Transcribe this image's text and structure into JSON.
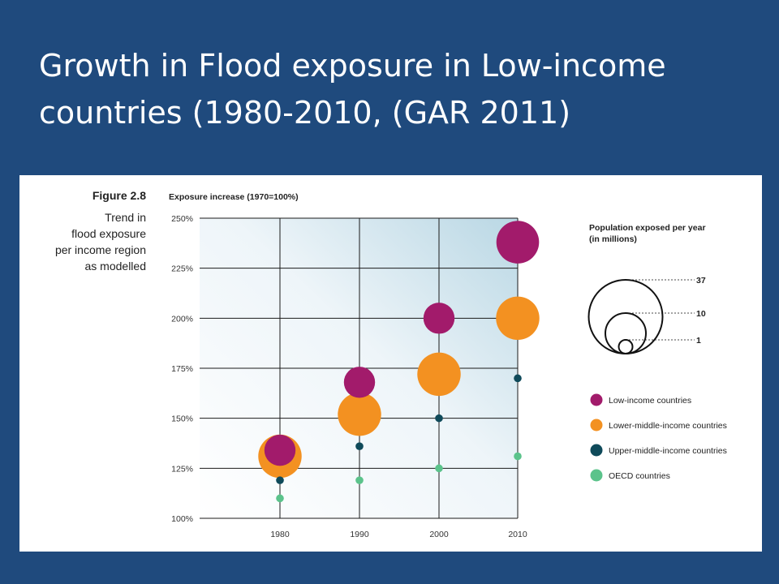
{
  "slide": {
    "title_line1": "Growth in Flood exposure in Low-income",
    "title_line2": "countries (1980-2010, (GAR 2011)"
  },
  "figure": {
    "label": "Figure 2.8",
    "caption_lines": [
      "Trend in",
      "flood exposure",
      "per income region",
      "as modelled"
    ]
  },
  "chart_data": {
    "type": "scatter",
    "subtype": "bubble",
    "y_axis_title": "Exposure increase (1970=100%)",
    "x": [
      1980,
      1990,
      2000,
      2010
    ],
    "x_tick_labels": [
      "1980",
      "1990",
      "2000",
      "2010"
    ],
    "ylim": [
      100,
      250
    ],
    "y_ticks": [
      100,
      125,
      150,
      175,
      200,
      225,
      250
    ],
    "y_tick_labels": [
      "100%",
      "125%",
      "150%",
      "175%",
      "200%",
      "225%",
      "250%"
    ],
    "grid": true,
    "legend_position": "right",
    "size_legend": {
      "title_lines": [
        "Population exposed per year",
        "(in millions)"
      ],
      "values": [
        37,
        10,
        1
      ],
      "labels": [
        "37",
        "10",
        "1"
      ]
    },
    "series": [
      {
        "name": "Lower-middle-income countries",
        "color": "#f39121",
        "y": [
          131,
          152,
          172,
          200
        ],
        "population_millions": [
          31,
          31,
          31,
          31
        ]
      },
      {
        "name": "Low-income countries",
        "color": "#a21b6b",
        "y": [
          134,
          168,
          200,
          238
        ],
        "population_millions": [
          16,
          16,
          16,
          30
        ]
      },
      {
        "name": "Upper-middle-income countries",
        "color": "#0f4a5a",
        "y": [
          119,
          136,
          150,
          170
        ],
        "population_millions": [
          1,
          1,
          1,
          1
        ]
      },
      {
        "name": "OECD countries",
        "color": "#5bc38b",
        "y": [
          110,
          119,
          125,
          131
        ],
        "population_millions": [
          1,
          1,
          1,
          1
        ]
      }
    ],
    "legend_order": [
      1,
      0,
      2,
      3
    ]
  }
}
